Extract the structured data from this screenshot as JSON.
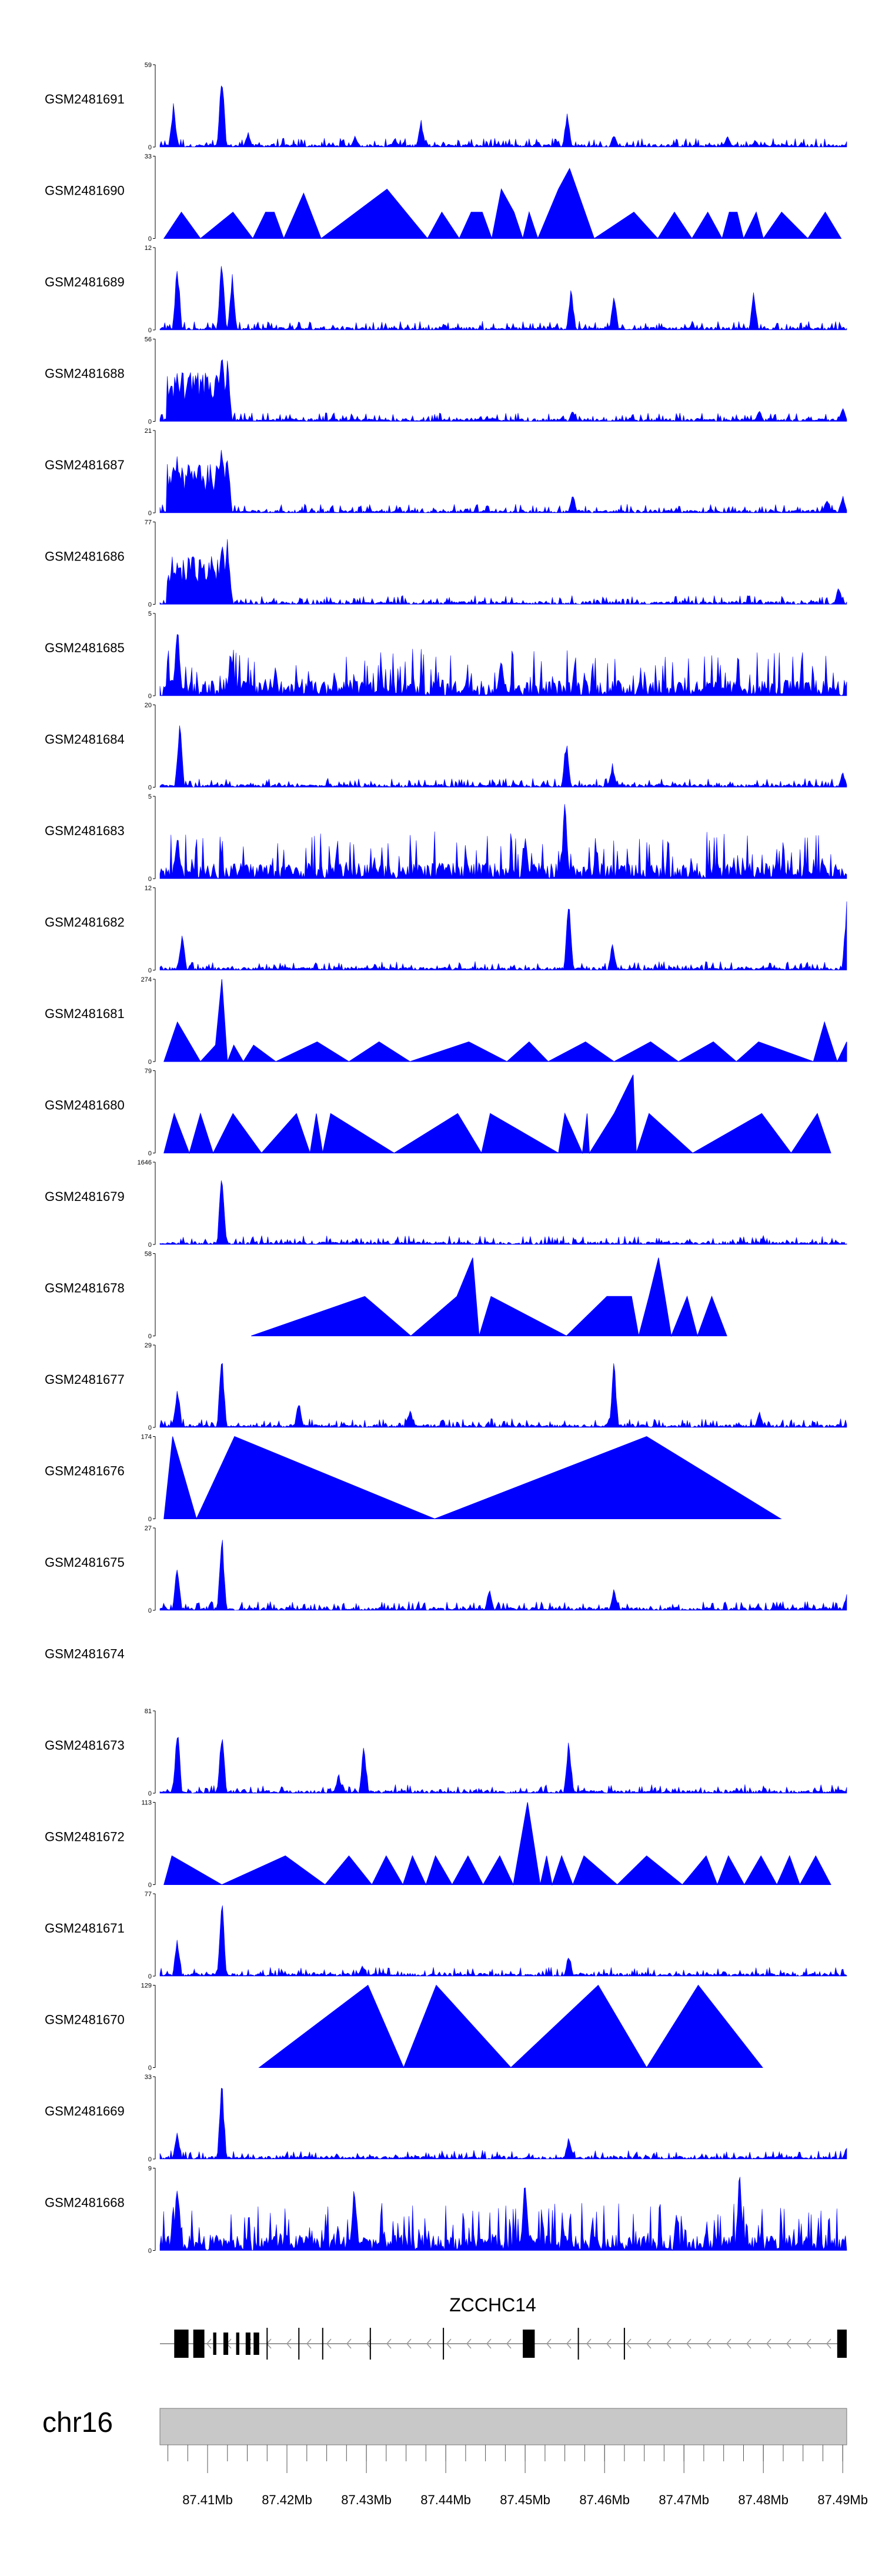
{
  "chart_data": {
    "type": "area",
    "title": "",
    "x_range_mb": [
      87.404,
      87.4905
    ],
    "chromosome": "chr16",
    "gene": "ZCCHC14",
    "x_ticks": [
      "87.41Mb",
      "87.42Mb",
      "87.43Mb",
      "87.44Mb",
      "87.45Mb",
      "87.46Mb",
      "87.47Mb",
      "87.48Mb",
      "87.49Mb"
    ],
    "x_tick_values": [
      87.41,
      87.42,
      87.43,
      87.44,
      87.45,
      87.46,
      87.47,
      87.48,
      87.49
    ],
    "tracks": [
      {
        "name": "GSM2481691",
        "ymax": "59",
        "ymin": "0",
        "style": "dense",
        "peaks": [
          [
            87.4057,
            0.55
          ],
          [
            87.4118,
            1.0
          ],
          [
            87.4151,
            0.2
          ],
          [
            87.4286,
            0.15
          ],
          [
            87.4336,
            0.12
          ],
          [
            87.4369,
            0.35
          ],
          [
            87.4553,
            0.45
          ],
          [
            87.4612,
            0.18
          ],
          [
            87.4755,
            0.15
          ],
          [
            87.479,
            0.1
          ]
        ]
      },
      {
        "name": "GSM2481690",
        "ymax": "33",
        "ymin": "0",
        "style": "triangles",
        "verts": [
          [
            87.4045,
            0
          ],
          [
            87.4067,
            0.32
          ],
          [
            87.4091,
            0
          ],
          [
            87.4132,
            0.32
          ],
          [
            87.4157,
            0
          ],
          [
            87.4173,
            0.32
          ],
          [
            87.4184,
            0.32
          ],
          [
            87.4196,
            0
          ],
          [
            87.4221,
            0.55
          ],
          [
            87.4243,
            0
          ],
          [
            87.4326,
            0.6
          ],
          [
            87.4377,
            0
          ],
          [
            87.4395,
            0.32
          ],
          [
            87.4417,
            0
          ],
          [
            87.4432,
            0.32
          ],
          [
            87.4446,
            0.32
          ],
          [
            87.4458,
            0
          ],
          [
            87.447,
            0.6
          ],
          [
            87.4486,
            0.32
          ],
          [
            87.4497,
            0
          ],
          [
            87.4505,
            0.32
          ],
          [
            87.4516,
            0
          ],
          [
            87.4542,
            0.6
          ],
          [
            87.4556,
            0.85
          ],
          [
            87.4587,
            0
          ],
          [
            87.4637,
            0.32
          ],
          [
            87.4667,
            0
          ],
          [
            87.4688,
            0.32
          ],
          [
            87.471,
            0
          ],
          [
            87.473,
            0.32
          ],
          [
            87.4748,
            0
          ],
          [
            87.4757,
            0.32
          ],
          [
            87.4767,
            0.32
          ],
          [
            87.4775,
            0
          ],
          [
            87.4791,
            0.32
          ],
          [
            87.48,
            0
          ],
          [
            87.4823,
            0.32
          ],
          [
            87.4856,
            0
          ],
          [
            87.4878,
            0.32
          ],
          [
            87.4898,
            0
          ]
        ]
      },
      {
        "name": "GSM2481689",
        "ymax": "12",
        "ymin": "0",
        "style": "dense",
        "peaks": [
          [
            87.4062,
            0.9
          ],
          [
            87.4118,
            0.95
          ],
          [
            87.4131,
            0.7
          ],
          [
            87.4558,
            0.55
          ],
          [
            87.4612,
            0.45
          ],
          [
            87.4788,
            0.5
          ]
        ]
      },
      {
        "name": "GSM2481688",
        "ymax": "56",
        "ymin": "0",
        "style": "dense",
        "peaks": [
          [
            87.4062,
            0.65
          ],
          [
            87.4118,
            1.0
          ],
          [
            87.4125,
            0.78
          ],
          [
            87.456,
            0.15
          ],
          [
            87.4795,
            0.15
          ],
          [
            87.49,
            0.18
          ]
        ]
      },
      {
        "name": "GSM2481687",
        "ymax": "21",
        "ymin": "0",
        "style": "dense",
        "peaks": [
          [
            87.4062,
            0.75
          ],
          [
            87.4118,
            0.95
          ],
          [
            87.4125,
            0.85
          ],
          [
            87.456,
            0.25
          ],
          [
            87.488,
            0.2
          ],
          [
            87.49,
            0.22
          ]
        ]
      },
      {
        "name": "GSM2481686",
        "ymax": "77",
        "ymin": "0",
        "style": "dense",
        "peaks": [
          [
            87.4062,
            0.55
          ],
          [
            87.4118,
            0.9
          ],
          [
            87.4125,
            0.88
          ],
          [
            87.4895,
            0.25
          ]
        ]
      },
      {
        "name": "GSM2481685",
        "ymax": "5",
        "ymin": "0",
        "style": "dense",
        "peaks": [
          [
            87.4062,
            0.95
          ],
          [
            87.413,
            0.6
          ],
          [
            87.447,
            0.55
          ]
        ]
      },
      {
        "name": "GSM2481684",
        "ymax": "20",
        "ymin": "0",
        "style": "dense",
        "peaks": [
          [
            87.4065,
            0.92
          ],
          [
            87.4552,
            0.65
          ],
          [
            87.461,
            0.3
          ],
          [
            87.49,
            0.2
          ]
        ]
      },
      {
        "name": "GSM2481683",
        "ymax": "5",
        "ymin": "0",
        "style": "dense",
        "peaks": [
          [
            87.455,
            1.0
          ],
          [
            87.4062,
            0.6
          ],
          [
            87.45,
            0.55
          ]
        ]
      },
      {
        "name": "GSM2481682",
        "ymax": "12",
        "ymin": "0",
        "style": "dense",
        "peaks": [
          [
            87.4555,
            0.95
          ],
          [
            87.4905,
            0.85
          ],
          [
            87.461,
            0.35
          ],
          [
            87.4068,
            0.5
          ]
        ]
      },
      {
        "name": "GSM2481681",
        "ymax": "274",
        "ymin": "0",
        "style": "triangles",
        "verts": [
          [
            87.4045,
            0
          ],
          [
            87.4062,
            0.48
          ],
          [
            87.4091,
            0
          ],
          [
            87.411,
            0.2
          ],
          [
            87.4118,
            1.0
          ],
          [
            87.4125,
            0
          ],
          [
            87.4133,
            0.2
          ],
          [
            87.4145,
            0
          ],
          [
            87.4158,
            0.2
          ],
          [
            87.4186,
            0
          ],
          [
            87.4238,
            0.24
          ],
          [
            87.4278,
            0
          ],
          [
            87.4316,
            0.24
          ],
          [
            87.4355,
            0
          ],
          [
            87.4429,
            0.24
          ],
          [
            87.4477,
            0
          ],
          [
            87.4505,
            0.24
          ],
          [
            87.4529,
            0
          ],
          [
            87.4576,
            0.24
          ],
          [
            87.4612,
            0
          ],
          [
            87.4658,
            0.24
          ],
          [
            87.4693,
            0
          ],
          [
            87.4737,
            0.24
          ],
          [
            87.4766,
            0
          ],
          [
            87.4794,
            0.24
          ],
          [
            87.4863,
            0
          ],
          [
            87.4877,
            0.48
          ],
          [
            87.4893,
            0
          ],
          [
            87.4905,
            0.24
          ]
        ]
      },
      {
        "name": "GSM2481680",
        "ymax": "79",
        "ymin": "0",
        "style": "triangles",
        "verts": [
          [
            87.4045,
            0
          ],
          [
            87.4058,
            0.48
          ],
          [
            87.4077,
            0
          ],
          [
            87.4091,
            0.48
          ],
          [
            87.4107,
            0
          ],
          [
            87.4132,
            0.48
          ],
          [
            87.4168,
            0
          ],
          [
            87.4212,
            0.48
          ],
          [
            87.4229,
            0
          ],
          [
            87.4237,
            0.48
          ],
          [
            87.4245,
            0
          ],
          [
            87.4255,
            0.48
          ],
          [
            87.4335,
            0
          ],
          [
            87.4415,
            0.48
          ],
          [
            87.4445,
            0
          ],
          [
            87.4456,
            0.48
          ],
          [
            87.4542,
            0
          ],
          [
            87.455,
            0.48
          ],
          [
            87.4572,
            0
          ],
          [
            87.4578,
            0.48
          ],
          [
            87.4581,
            0
          ],
          [
            87.4612,
            0.48
          ],
          [
            87.4636,
            0.95
          ],
          [
            87.464,
            0
          ],
          [
            87.4656,
            0.48
          ],
          [
            87.4711,
            0
          ],
          [
            87.4798,
            0.48
          ],
          [
            87.4835,
            0
          ],
          [
            87.4868,
            0.48
          ],
          [
            87.4885,
            0
          ]
        ]
      },
      {
        "name": "GSM2481679",
        "ymax": "1646",
        "ymin": "0",
        "style": "dense",
        "peaks": [
          [
            87.4118,
            1.0
          ]
        ]
      },
      {
        "name": "GSM2481678",
        "ymax": "58",
        "ymin": "0",
        "style": "triangles",
        "verts": [
          [
            87.4155,
            0
          ],
          [
            87.4298,
            0.48
          ],
          [
            87.4356,
            0
          ],
          [
            87.4414,
            0.48
          ],
          [
            87.4434,
            0.95
          ],
          [
            87.4442,
            0
          ],
          [
            87.4457,
            0.48
          ],
          [
            87.4552,
            0
          ],
          [
            87.4603,
            0.48
          ],
          [
            87.4634,
            0.48
          ],
          [
            87.4643,
            0
          ],
          [
            87.4656,
            0.48
          ],
          [
            87.4668,
            0.95
          ],
          [
            87.4684,
            0
          ],
          [
            87.4704,
            0.48
          ],
          [
            87.4717,
            0
          ],
          [
            87.4735,
            0.48
          ],
          [
            87.4754,
            0
          ]
        ]
      },
      {
        "name": "GSM2481677",
        "ymax": "29",
        "ymin": "0",
        "style": "dense",
        "peaks": [
          [
            87.4062,
            0.55
          ],
          [
            87.4118,
            1.0
          ],
          [
            87.4215,
            0.35
          ],
          [
            87.4355,
            0.25
          ],
          [
            87.4612,
            0.85
          ],
          [
            87.4795,
            0.2
          ]
        ]
      },
      {
        "name": "GSM2481676",
        "ymax": "174",
        "ymin": "0",
        "style": "triangles",
        "verts": [
          [
            87.4045,
            0
          ],
          [
            87.4056,
            1.0
          ],
          [
            87.4086,
            0
          ],
          [
            87.4134,
            1.0
          ],
          [
            87.4386,
            0
          ],
          [
            87.4653,
            1.0
          ],
          [
            87.4822,
            0
          ]
        ]
      },
      {
        "name": "GSM2481675",
        "ymax": "27",
        "ymin": "0",
        "style": "dense",
        "peaks": [
          [
            87.4062,
            0.65
          ],
          [
            87.4118,
            1.0
          ],
          [
            87.4455,
            0.3
          ],
          [
            87.4612,
            0.3
          ],
          [
            87.4905,
            0.2
          ]
        ]
      },
      {
        "name": "GSM2481674",
        "ymax": "",
        "ymin": "",
        "style": "empty"
      },
      {
        "name": "GSM2481673",
        "ymax": "81",
        "ymin": "0",
        "style": "dense",
        "peaks": [
          [
            87.4062,
            0.9
          ],
          [
            87.4118,
            0.9
          ],
          [
            87.4297,
            0.65
          ],
          [
            87.4555,
            0.75
          ],
          [
            87.4265,
            0.25
          ]
        ]
      },
      {
        "name": "GSM2481672",
        "ymax": "113",
        "ymin": "0",
        "style": "triangles",
        "verts": [
          [
            87.4045,
            0
          ],
          [
            87.4055,
            0.35
          ],
          [
            87.4118,
            0
          ],
          [
            87.4198,
            0.35
          ],
          [
            87.4248,
            0
          ],
          [
            87.4278,
            0.35
          ],
          [
            87.4307,
            0
          ],
          [
            87.4325,
            0.35
          ],
          [
            87.4346,
            0
          ],
          [
            87.4358,
            0.35
          ],
          [
            87.4375,
            0
          ],
          [
            87.4387,
            0.35
          ],
          [
            87.4408,
            0
          ],
          [
            87.4428,
            0.35
          ],
          [
            87.4447,
            0
          ],
          [
            87.4468,
            0.35
          ],
          [
            87.4485,
            0
          ],
          [
            87.4503,
            1.0
          ],
          [
            87.4519,
            0
          ],
          [
            87.4527,
            0.35
          ],
          [
            87.4534,
            0
          ],
          [
            87.4546,
            0.35
          ],
          [
            87.456,
            0
          ],
          [
            87.4574,
            0.35
          ],
          [
            87.4616,
            0
          ],
          [
            87.4653,
            0.35
          ],
          [
            87.4698,
            0
          ],
          [
            87.4728,
            0.35
          ],
          [
            87.4742,
            0
          ],
          [
            87.4756,
            0.35
          ],
          [
            87.4776,
            0
          ],
          [
            87.4797,
            0.35
          ],
          [
            87.4817,
            0
          ],
          [
            87.4833,
            0.35
          ],
          [
            87.4846,
            0
          ],
          [
            87.4866,
            0.35
          ],
          [
            87.4885,
            0
          ]
        ]
      },
      {
        "name": "GSM2481671",
        "ymax": "77",
        "ymin": "0",
        "style": "dense",
        "peaks": [
          [
            87.4062,
            0.5
          ],
          [
            87.4118,
            1.0
          ],
          [
            87.4555,
            0.3
          ],
          [
            87.4295,
            0.15
          ]
        ]
      },
      {
        "name": "GSM2481670",
        "ymax": "129",
        "ymin": "0",
        "style": "triangles",
        "verts": [
          [
            87.4165,
            0
          ],
          [
            87.4302,
            1.0
          ],
          [
            87.4347,
            0
          ],
          [
            87.4388,
            1.0
          ],
          [
            87.4482,
            0
          ],
          [
            87.4592,
            1.0
          ],
          [
            87.4653,
            0
          ],
          [
            87.4718,
            1.0
          ],
          [
            87.4799,
            0
          ]
        ]
      },
      {
        "name": "GSM2481669",
        "ymax": "33",
        "ymin": "0",
        "style": "dense",
        "peaks": [
          [
            87.4062,
            0.35
          ],
          [
            87.4118,
            1.0
          ],
          [
            87.4555,
            0.3
          ],
          [
            87.4905,
            0.15
          ]
        ]
      },
      {
        "name": "GSM2481668",
        "ymax": "9",
        "ymin": "0",
        "style": "dense",
        "peaks": [
          [
            87.4062,
            0.95
          ],
          [
            87.45,
            1.0
          ],
          [
            87.477,
            1.0
          ],
          [
            87.4285,
            0.9
          ]
        ]
      }
    ],
    "gene_model": {
      "strand": "-",
      "exons_thin": [
        87.4175,
        87.4215,
        87.4245,
        87.4305,
        87.4397,
        87.4567,
        87.4625
      ],
      "exons_thick": [
        [
          87.4058,
          87.4076
        ],
        [
          87.4082,
          87.4096
        ],
        [
          87.4107,
          87.4111
        ],
        [
          87.412,
          87.4126
        ],
        [
          87.4136,
          87.414
        ],
        [
          87.4148,
          87.4154
        ],
        [
          87.4158,
          87.4165
        ],
        [
          87.4497,
          87.4512
        ],
        [
          87.4893,
          87.4905
        ]
      ]
    }
  }
}
